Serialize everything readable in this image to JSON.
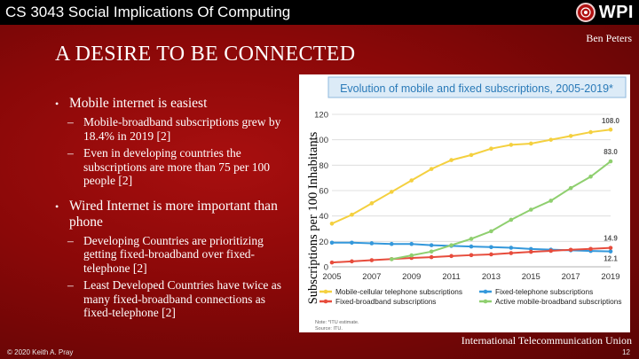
{
  "header": {
    "course_title": "CS 3043 Social Implications Of Computing",
    "logo_text": "WPI",
    "author": "Ben Peters"
  },
  "slide": {
    "title": "A DESIRE TO BE CONNECTED",
    "bullets": [
      {
        "text": "Mobile internet is easiest",
        "subs": [
          "Mobile-broadband subscriptions grew by 18.4% in 2019 [2]",
          "Even in developing countries the subscriptions are more than 75 per 100 people [2]"
        ]
      },
      {
        "text": "Wired Internet is more important than phone",
        "subs": [
          "Developing Countries are prioritizing getting fixed-broadband over fixed-telephone [2]",
          "Least Developed Countries have twice as many fixed-broadband connections as fixed-telephone [2]"
        ]
      }
    ],
    "image_caption": "International Telecommunication Union"
  },
  "footer": {
    "copyright": "© 2020 Keith A. Pray",
    "page_number": "12"
  },
  "chart_data": {
    "type": "line",
    "title": "Evolution of mobile and fixed subscriptions, 2005-2019*",
    "xlabel": "",
    "ylabel": "Subscriptions per 100 Inhabitants",
    "ylim": [
      0,
      120
    ],
    "yticks": [
      "0",
      "20",
      "40",
      "60",
      "80",
      "100",
      "120"
    ],
    "xticks": [
      "2005",
      "2007",
      "2009",
      "2011",
      "2013",
      "2015",
      "2017",
      "2019"
    ],
    "x": [
      2005,
      2006,
      2007,
      2008,
      2009,
      2010,
      2011,
      2012,
      2013,
      2014,
      2015,
      2016,
      2017,
      2018,
      2019
    ],
    "series": [
      {
        "name": "Mobile-cellular telephone subscriptions",
        "color": "#f4d03f",
        "values": [
          34,
          41,
          50,
          59,
          68,
          77,
          84,
          88,
          93,
          96,
          97,
          100,
          103,
          106,
          108.0
        ],
        "end_label": "108.0"
      },
      {
        "name": "Fixed-telephone subscriptions",
        "color": "#3498db",
        "values": [
          19,
          19,
          18.5,
          18,
          18,
          17,
          16.5,
          16,
          15.5,
          15,
          14,
          13.5,
          13,
          12.5,
          12.1
        ],
        "end_label": "12.1"
      },
      {
        "name": "Fixed-broadband subscriptions",
        "color": "#e74c3c",
        "values": [
          3.4,
          4.3,
          5.2,
          6.1,
          7.0,
          7.6,
          8.5,
          9.2,
          9.8,
          10.8,
          11.8,
          12.6,
          13.4,
          14.1,
          14.9
        ],
        "end_label": "14.9"
      },
      {
        "name": "Active mobile-broadband subscriptions",
        "color": "#8fcf6f",
        "values": [
          null,
          null,
          null,
          6,
          9,
          12,
          17,
          22,
          28,
          37,
          45,
          52,
          62,
          71,
          83.0
        ],
        "end_label": "83.0"
      }
    ],
    "legend": [
      "Mobile-cellular telephone subscriptions",
      "Fixed-telephone subscriptions",
      "Fixed-broadband subscriptions",
      "Active mobile-broadband subscriptions"
    ],
    "notes": [
      "Note: *ITU estimate.",
      "Source: ITU."
    ]
  }
}
